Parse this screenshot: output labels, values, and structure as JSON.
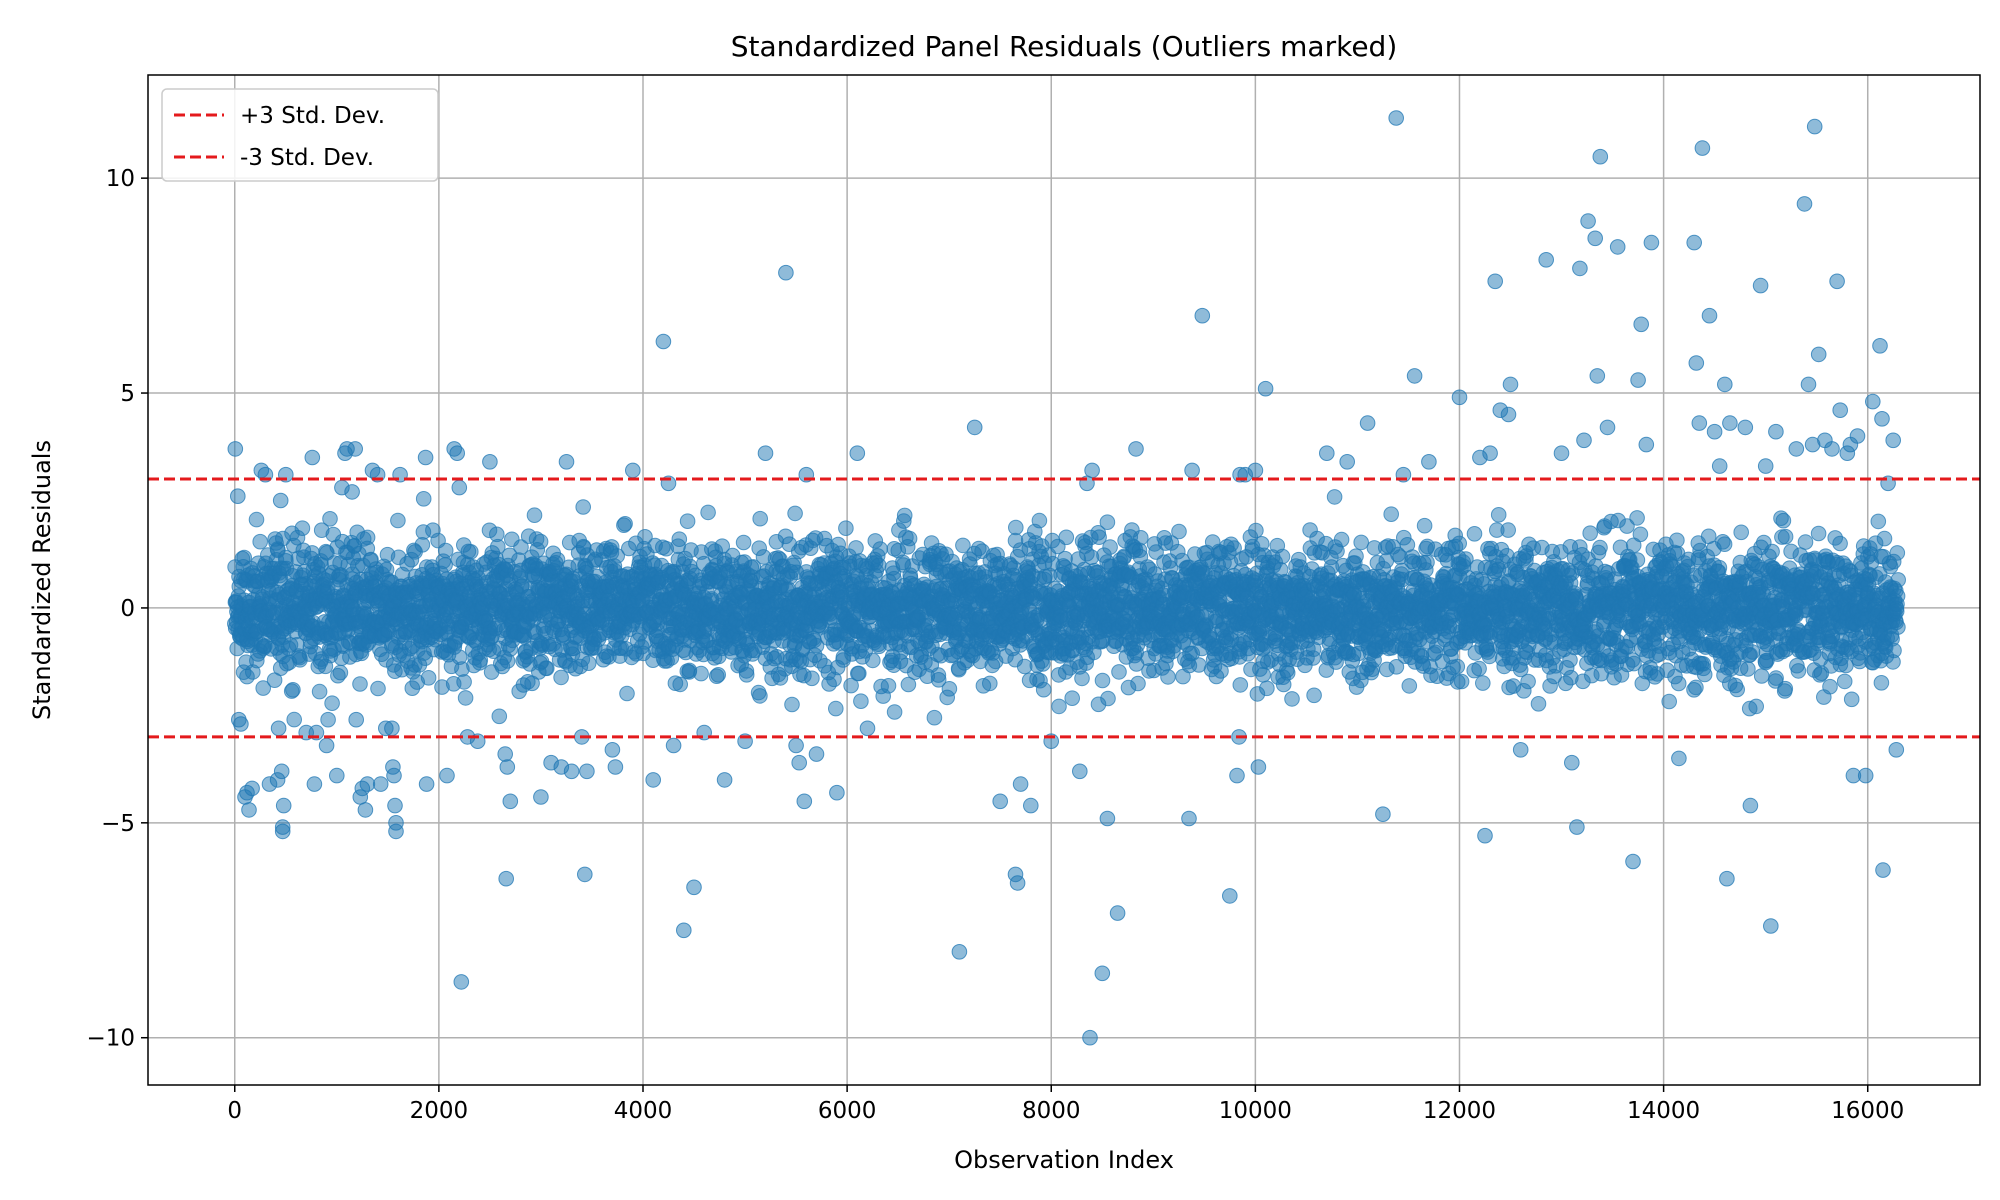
{
  "chart_data": {
    "type": "scatter",
    "title": "Standardized Panel Residuals (Outliers marked)",
    "xlabel": "Observation Index",
    "ylabel": "Standardized Residuals",
    "xlim": [
      -850,
      17100
    ],
    "ylim": [
      -11.1,
      12.4
    ],
    "xticks": [
      0,
      2000,
      4000,
      6000,
      8000,
      10000,
      12000,
      14000,
      16000
    ],
    "yticks": [
      -10,
      -5,
      0,
      5,
      10
    ],
    "grid": true,
    "legend_position": "top-left",
    "point_color": "#1f77b4",
    "threshold_color": "#e41a1c",
    "series_count": 16300,
    "thresholds": [
      {
        "label": "+3 Std. Dev.",
        "value": 3
      },
      {
        "label": "-3 Std. Dev.",
        "value": -3
      }
    ],
    "outliers": [
      [
        5,
        3.7
      ],
      [
        30,
        2.6
      ],
      [
        40,
        -2.6
      ],
      [
        60,
        -2.7
      ],
      [
        100,
        -4.4
      ],
      [
        120,
        -4.3
      ],
      [
        140,
        -4.7
      ],
      [
        170,
        -4.2
      ],
      [
        260,
        3.2
      ],
      [
        300,
        3.1
      ],
      [
        340,
        -4.1
      ],
      [
        420,
        -4.0
      ],
      [
        430,
        -2.8
      ],
      [
        450,
        2.5
      ],
      [
        460,
        -3.8
      ],
      [
        470,
        -5.1
      ],
      [
        470,
        -5.2
      ],
      [
        480,
        -4.6
      ],
      [
        500,
        3.1
      ],
      [
        700,
        -2.9
      ],
      [
        760,
        3.5
      ],
      [
        780,
        -4.1
      ],
      [
        800,
        -2.9
      ],
      [
        900,
        -3.2
      ],
      [
        1000,
        -3.9
      ],
      [
        1050,
        2.8
      ],
      [
        1080,
        3.6
      ],
      [
        1100,
        3.7
      ],
      [
        1150,
        2.7
      ],
      [
        1180,
        3.7
      ],
      [
        1190,
        -2.6
      ],
      [
        1230,
        -4.4
      ],
      [
        1250,
        -4.2
      ],
      [
        1280,
        -4.7
      ],
      [
        1300,
        -4.1
      ],
      [
        1350,
        3.2
      ],
      [
        1400,
        3.1
      ],
      [
        1430,
        -4.1
      ],
      [
        1480,
        -2.8
      ],
      [
        1540,
        -2.8
      ],
      [
        1550,
        -3.7
      ],
      [
        1560,
        -3.9
      ],
      [
        1570,
        -4.6
      ],
      [
        1580,
        -5.0
      ],
      [
        1580,
        -5.2
      ],
      [
        1620,
        3.1
      ],
      [
        1870,
        3.5
      ],
      [
        1880,
        -4.1
      ],
      [
        2080,
        -3.9
      ],
      [
        2150,
        3.7
      ],
      [
        2180,
        3.6
      ],
      [
        2200,
        2.8
      ],
      [
        2220,
        -8.7
      ],
      [
        2280,
        -3.0
      ],
      [
        2380,
        -3.1
      ],
      [
        2500,
        3.4
      ],
      [
        2650,
        -3.4
      ],
      [
        2660,
        -6.3
      ],
      [
        2670,
        -3.7
      ],
      [
        2700,
        -4.5
      ],
      [
        3000,
        -4.4
      ],
      [
        3100,
        -3.6
      ],
      [
        3200,
        -3.7
      ],
      [
        3250,
        3.4
      ],
      [
        3300,
        -3.8
      ],
      [
        3400,
        -3.0
      ],
      [
        3430,
        -6.2
      ],
      [
        3450,
        -3.8
      ],
      [
        3700,
        -3.3
      ],
      [
        3730,
        -3.7
      ],
      [
        3900,
        3.2
      ],
      [
        4100,
        -4.0
      ],
      [
        4200,
        6.2
      ],
      [
        4250,
        2.9
      ],
      [
        4300,
        -3.2
      ],
      [
        4400,
        -7.5
      ],
      [
        4500,
        -6.5
      ],
      [
        4600,
        -2.9
      ],
      [
        4800,
        -4.0
      ],
      [
        5000,
        -3.1
      ],
      [
        5200,
        3.6
      ],
      [
        5400,
        7.8
      ],
      [
        5500,
        -3.2
      ],
      [
        5530,
        -3.6
      ],
      [
        5580,
        -4.5
      ],
      [
        5600,
        3.1
      ],
      [
        5700,
        -3.4
      ],
      [
        5900,
        -4.3
      ],
      [
        6100,
        3.6
      ],
      [
        6200,
        -2.8
      ],
      [
        7100,
        -8.0
      ],
      [
        7250,
        4.2
      ],
      [
        7500,
        -4.5
      ],
      [
        7650,
        -6.2
      ],
      [
        7670,
        -6.4
      ],
      [
        7700,
        -4.1
      ],
      [
        7800,
        -4.6
      ],
      [
        8000,
        -3.1
      ],
      [
        8280,
        -3.8
      ],
      [
        8350,
        2.9
      ],
      [
        8380,
        -10.0
      ],
      [
        8400,
        3.2
      ],
      [
        8500,
        -8.5
      ],
      [
        8550,
        -4.9
      ],
      [
        8650,
        -7.1
      ],
      [
        8830,
        3.7
      ],
      [
        9350,
        -4.9
      ],
      [
        9380,
        3.2
      ],
      [
        9480,
        6.8
      ],
      [
        9750,
        -6.7
      ],
      [
        9820,
        -3.9
      ],
      [
        9840,
        -3.0
      ],
      [
        9850,
        3.1
      ],
      [
        9900,
        3.1
      ],
      [
        10000,
        3.2
      ],
      [
        10030,
        -3.7
      ],
      [
        10100,
        5.1
      ],
      [
        10700,
        3.6
      ],
      [
        10900,
        3.4
      ],
      [
        11100,
        4.3
      ],
      [
        11250,
        -4.8
      ],
      [
        11380,
        11.4
      ],
      [
        11450,
        3.1
      ],
      [
        11560,
        5.4
      ],
      [
        11700,
        3.4
      ],
      [
        12000,
        4.9
      ],
      [
        12200,
        3.5
      ],
      [
        12250,
        -5.3
      ],
      [
        12300,
        3.6
      ],
      [
        12350,
        7.6
      ],
      [
        12400,
        4.6
      ],
      [
        12480,
        4.5
      ],
      [
        12500,
        5.2
      ],
      [
        12600,
        -3.3
      ],
      [
        12850,
        8.1
      ],
      [
        13000,
        3.6
      ],
      [
        13100,
        -3.6
      ],
      [
        13150,
        -5.1
      ],
      [
        13180,
        7.9
      ],
      [
        13220,
        3.9
      ],
      [
        13260,
        9.0
      ],
      [
        13330,
        8.6
      ],
      [
        13350,
        5.4
      ],
      [
        13380,
        10.5
      ],
      [
        13450,
        4.2
      ],
      [
        13550,
        8.4
      ],
      [
        13700,
        -5.9
      ],
      [
        13750,
        5.3
      ],
      [
        13780,
        6.6
      ],
      [
        13830,
        3.8
      ],
      [
        13880,
        8.5
      ],
      [
        14150,
        -3.5
      ],
      [
        14300,
        8.5
      ],
      [
        14320,
        5.7
      ],
      [
        14350,
        4.3
      ],
      [
        14380,
        10.7
      ],
      [
        14450,
        6.8
      ],
      [
        14500,
        4.1
      ],
      [
        14550,
        3.3
      ],
      [
        14600,
        5.2
      ],
      [
        14620,
        -6.3
      ],
      [
        14650,
        4.3
      ],
      [
        14800,
        4.2
      ],
      [
        14850,
        -4.6
      ],
      [
        14950,
        7.5
      ],
      [
        15000,
        3.3
      ],
      [
        15050,
        -7.4
      ],
      [
        15100,
        4.1
      ],
      [
        15300,
        3.7
      ],
      [
        15380,
        9.4
      ],
      [
        15420,
        5.2
      ],
      [
        15460,
        3.8
      ],
      [
        15480,
        11.2
      ],
      [
        15520,
        5.9
      ],
      [
        15580,
        3.9
      ],
      [
        15650,
        3.7
      ],
      [
        15700,
        7.6
      ],
      [
        15730,
        4.6
      ],
      [
        15800,
        3.6
      ],
      [
        15830,
        3.8
      ],
      [
        15860,
        -3.9
      ],
      [
        15900,
        4.0
      ],
      [
        15980,
        -3.9
      ],
      [
        16050,
        4.8
      ],
      [
        16120,
        6.1
      ],
      [
        16140,
        4.4
      ],
      [
        16150,
        -6.1
      ],
      [
        16200,
        2.9
      ],
      [
        16250,
        3.9
      ],
      [
        16280,
        -3.3
      ]
    ]
  }
}
